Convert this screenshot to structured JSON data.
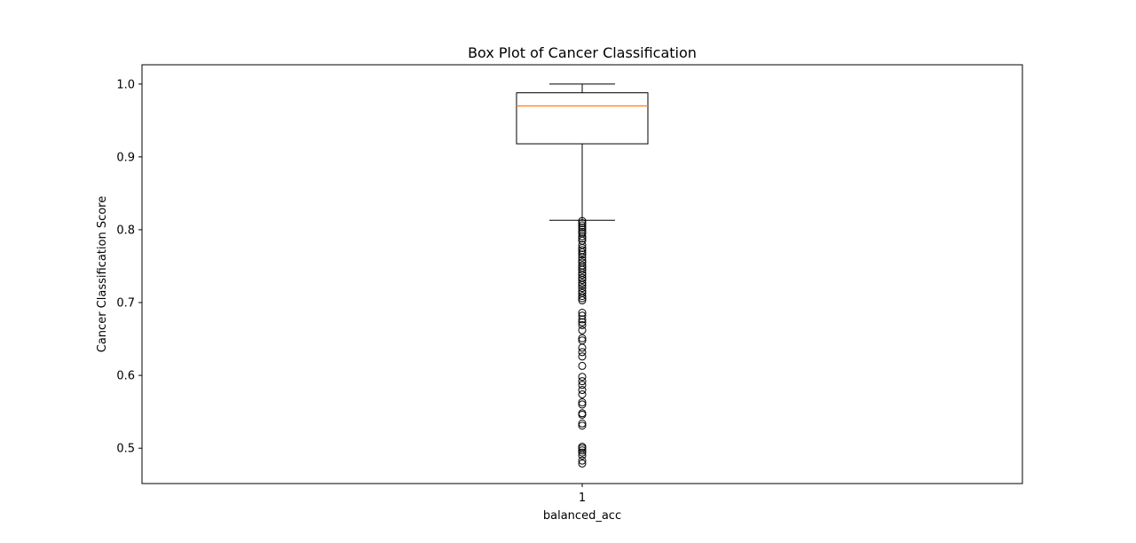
{
  "chart_data": {
    "type": "box",
    "title": "Box Plot of Cancer Classification",
    "xlabel": "balanced_acc",
    "ylabel": "Cancer Classification Score",
    "ylim": [
      0.4515,
      1.0265
    ],
    "yticks": [
      0.5,
      0.6,
      0.7,
      0.8,
      0.9,
      1.0
    ],
    "ytick_labels": [
      "0.5",
      "0.6",
      "0.7",
      "0.8",
      "0.9",
      "1.0"
    ],
    "categories": [
      "1"
    ],
    "grid": false,
    "colors": {
      "box": "#000000",
      "median": "#ff7f0e",
      "flier": "#000000"
    },
    "box": {
      "whisker_low": 0.813,
      "q1": 0.918,
      "median": 0.97,
      "q3": 0.988,
      "whisker_high": 1.0
    },
    "outliers": [
      0.812,
      0.809,
      0.806,
      0.803,
      0.8,
      0.797,
      0.795,
      0.791,
      0.788,
      0.785,
      0.779,
      0.775,
      0.772,
      0.769,
      0.766,
      0.762,
      0.758,
      0.755,
      0.751,
      0.748,
      0.745,
      0.741,
      0.738,
      0.734,
      0.731,
      0.727,
      0.724,
      0.72,
      0.716,
      0.713,
      0.709,
      0.706,
      0.703,
      0.686,
      0.682,
      0.677,
      0.673,
      0.669,
      0.662,
      0.651,
      0.648,
      0.638,
      0.632,
      0.626,
      0.613,
      0.598,
      0.592,
      0.587,
      0.58,
      0.574,
      0.563,
      0.56,
      0.548,
      0.546,
      0.534,
      0.531,
      0.502,
      0.5,
      0.497,
      0.494,
      0.49,
      0.483,
      0.479
    ]
  }
}
